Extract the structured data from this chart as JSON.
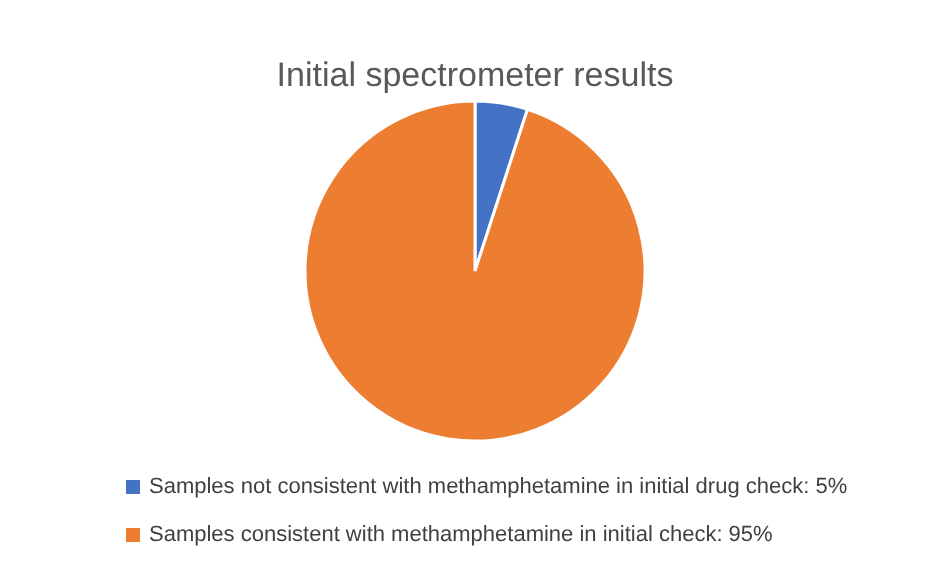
{
  "chart_data": {
    "type": "pie",
    "title": "Initial spectrometer results",
    "categories": [
      "Samples not consistent with methamphetamine in initial drug check: 5%",
      "Samples consistent with methamphetamine in initial check: 95%"
    ],
    "values": [
      5,
      95
    ],
    "colors": [
      "#4472c4",
      "#ed7d31"
    ],
    "legend": "bottom"
  }
}
